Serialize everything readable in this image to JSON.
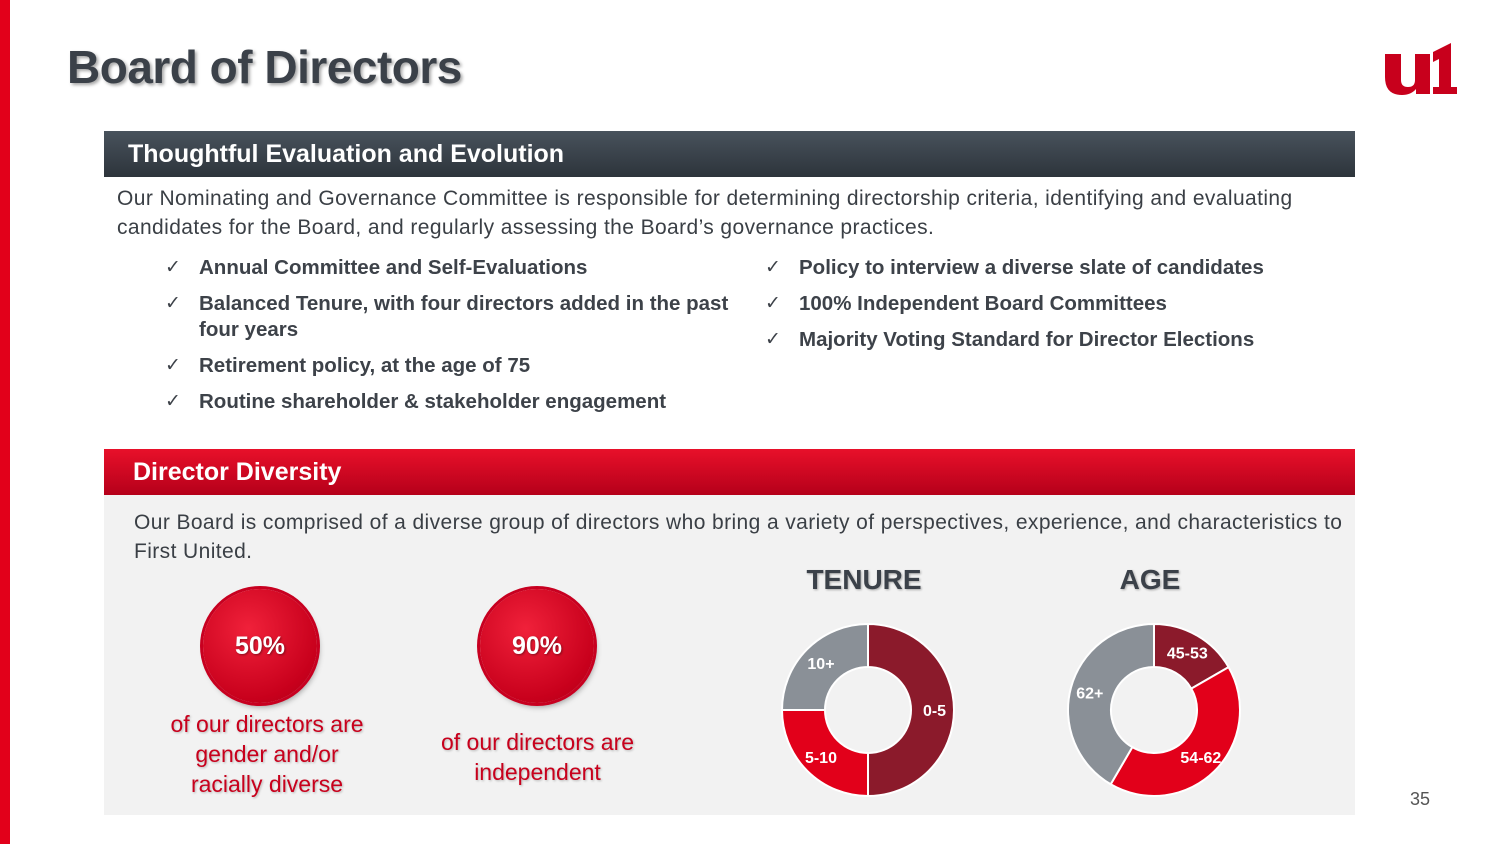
{
  "title": "Board of Directors",
  "colors": {
    "accent": "#e2001a",
    "dark_red": "#8b1a2b",
    "red": "#e2001a",
    "gray": "#8a9097",
    "header_dark": "#343b43"
  },
  "evaluation": {
    "header": "Thoughtful Evaluation and Evolution",
    "intro": "Our Nominating and Governance Committee is responsible for determining directorship criteria, identifying and evaluating candidates for the Board, and regularly assessing the Board’s governance practices.",
    "check_icon": "check-icon",
    "left_items": [
      "Annual Committee and Self-Evaluations",
      "Balanced Tenure, with four directors added in the past four years",
      "Retirement policy, at the age of 75",
      "Routine shareholder & stakeholder engagement"
    ],
    "right_items": [
      "Policy to interview a diverse slate of candidates",
      "100% Independent Board Committees",
      "Majority Voting Standard for Director Elections"
    ]
  },
  "diversity": {
    "header": "Director Diversity",
    "intro": "Our Board is comprised of a diverse group of directors who bring a variety of perspectives, experience, and characteristics to First United.",
    "stats": [
      {
        "value": "50%",
        "caption": "of our directors are gender and/or racially diverse"
      },
      {
        "value": "90%",
        "caption": "of our directors are independent"
      }
    ]
  },
  "chart_data": [
    {
      "type": "pie",
      "title": "TENURE",
      "categories": [
        "0-5",
        "5-10",
        "10+"
      ],
      "values": [
        50,
        25,
        25
      ],
      "colors": [
        "#8b1a2b",
        "#e2001a",
        "#8a9097"
      ]
    },
    {
      "type": "pie",
      "title": "AGE",
      "categories": [
        "45-53",
        "54-62",
        "62+"
      ],
      "values": [
        16.7,
        41.7,
        41.6
      ],
      "colors": [
        "#8b1a2b",
        "#e2001a",
        "#8a9097"
      ]
    }
  ],
  "page_number": "35"
}
